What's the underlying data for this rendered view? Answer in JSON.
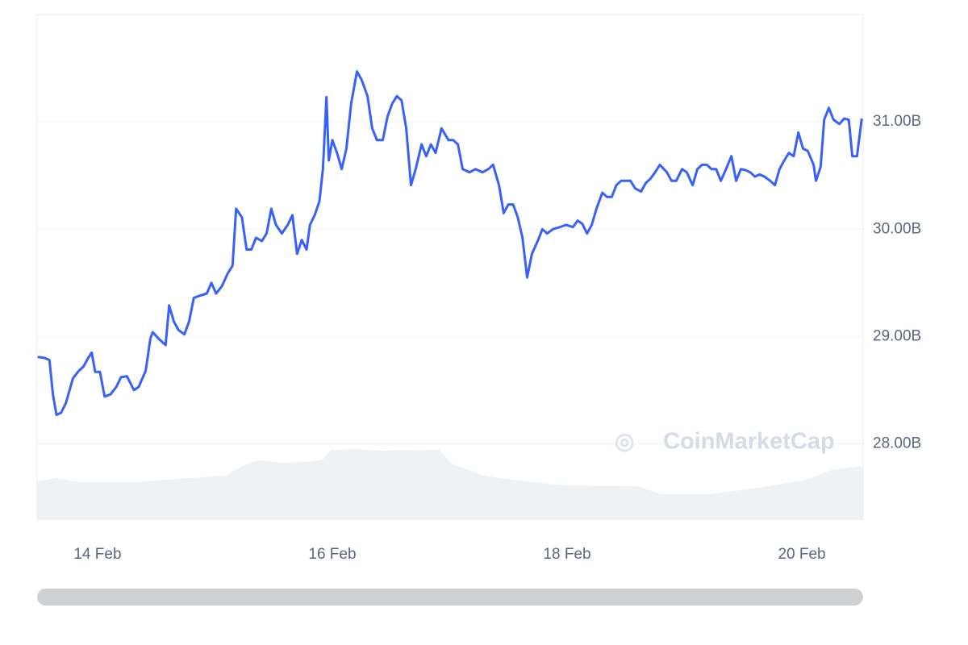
{
  "chart_data": {
    "type": "line",
    "watermark": "CoinMarketCap",
    "color": "#3861fb",
    "grid": true,
    "xlim": [
      13.485,
      20.522
    ],
    "xticks": [
      {
        "value": 14,
        "label": "14 Feb"
      },
      {
        "value": 16,
        "label": "16 Feb"
      },
      {
        "value": 18,
        "label": "18 Feb"
      },
      {
        "value": 20,
        "label": "20 Feb"
      }
    ],
    "ylim": [
      27.29,
      32.0
    ],
    "yticks": [
      {
        "value": 28,
        "label": "28.00B"
      },
      {
        "value": 29,
        "label": "29.00B"
      },
      {
        "value": 30,
        "label": "30.00B"
      },
      {
        "value": 31,
        "label": "31.00B"
      }
    ],
    "x": [
      13.49,
      13.55,
      13.59,
      13.62,
      13.65,
      13.69,
      13.73,
      13.79,
      13.84,
      13.88,
      13.92,
      13.95,
      13.98,
      14.02,
      14.06,
      14.11,
      14.16,
      14.2,
      14.25,
      14.31,
      14.35,
      14.41,
      14.45,
      14.47,
      14.52,
      14.58,
      14.61,
      14.65,
      14.69,
      14.74,
      14.78,
      14.82,
      14.87,
      14.93,
      14.97,
      15.01,
      15.06,
      15.11,
      15.15,
      15.18,
      15.23,
      15.27,
      15.31,
      15.35,
      15.4,
      15.44,
      15.48,
      15.52,
      15.57,
      15.62,
      15.66,
      15.7,
      15.74,
      15.78,
      15.81,
      15.85,
      15.89,
      15.92,
      15.95,
      15.97,
      16.0,
      16.04,
      16.08,
      16.12,
      16.16,
      16.21,
      16.25,
      16.3,
      16.34,
      16.38,
      16.43,
      16.47,
      16.51,
      16.55,
      16.59,
      16.63,
      16.67,
      16.71,
      16.76,
      16.8,
      16.84,
      16.88,
      16.93,
      16.99,
      17.03,
      17.07,
      17.11,
      17.17,
      17.22,
      17.28,
      17.33,
      17.37,
      17.42,
      17.46,
      17.5,
      17.54,
      17.58,
      17.62,
      17.66,
      17.7,
      17.75,
      17.79,
      17.83,
      17.88,
      17.94,
      17.99,
      18.05,
      18.09,
      18.13,
      18.17,
      18.21,
      18.25,
      18.3,
      18.34,
      18.38,
      18.42,
      18.46,
      18.5,
      18.54,
      18.58,
      18.63,
      18.67,
      18.71,
      18.75,
      18.79,
      18.85,
      18.89,
      18.93,
      18.98,
      19.02,
      19.07,
      19.11,
      19.15,
      19.19,
      19.23,
      19.27,
      19.31,
      19.35,
      19.4,
      19.44,
      19.48,
      19.52,
      19.56,
      19.6,
      19.64,
      19.68,
      19.73,
      19.77,
      19.81,
      19.85,
      19.89,
      19.93,
      19.97,
      20.01,
      20.05,
      20.1,
      20.12,
      20.16,
      20.19,
      20.23,
      20.27,
      20.32,
      20.36,
      20.4,
      20.43,
      20.47,
      20.51
    ],
    "values": [
      28.81,
      28.8,
      28.78,
      28.46,
      28.27,
      28.29,
      28.38,
      28.61,
      28.68,
      28.72,
      28.8,
      28.85,
      28.67,
      28.67,
      28.44,
      28.46,
      28.53,
      28.62,
      28.63,
      28.5,
      28.53,
      28.68,
      28.98,
      29.04,
      28.98,
      28.92,
      29.29,
      29.14,
      29.06,
      29.02,
      29.14,
      29.36,
      29.38,
      29.4,
      29.5,
      29.4,
      29.47,
      29.59,
      29.66,
      30.19,
      30.11,
      29.81,
      29.81,
      29.92,
      29.89,
      29.96,
      30.19,
      30.04,
      29.96,
      30.04,
      30.13,
      29.77,
      29.9,
      29.81,
      30.04,
      30.13,
      30.26,
      30.56,
      31.23,
      30.64,
      30.83,
      30.71,
      30.56,
      30.75,
      31.17,
      31.47,
      31.39,
      31.24,
      30.94,
      30.83,
      30.83,
      31.05,
      31.17,
      31.24,
      31.2,
      30.94,
      30.41,
      30.56,
      30.79,
      30.68,
      30.79,
      30.71,
      30.94,
      30.83,
      30.83,
      30.79,
      30.56,
      30.53,
      30.56,
      30.53,
      30.56,
      30.6,
      30.41,
      30.15,
      30.23,
      30.23,
      30.11,
      29.92,
      29.55,
      29.77,
      29.89,
      30.0,
      29.96,
      30.0,
      30.02,
      30.04,
      30.02,
      30.08,
      30.05,
      29.96,
      30.04,
      30.19,
      30.34,
      30.3,
      30.3,
      30.41,
      30.45,
      30.45,
      30.45,
      30.38,
      30.35,
      30.43,
      30.47,
      30.53,
      30.6,
      30.53,
      30.45,
      30.45,
      30.56,
      30.53,
      30.41,
      30.56,
      30.6,
      30.6,
      30.56,
      30.56,
      30.45,
      30.55,
      30.68,
      30.45,
      30.56,
      30.55,
      30.53,
      30.49,
      30.51,
      30.49,
      30.45,
      30.41,
      30.56,
      30.64,
      30.71,
      30.68,
      30.9,
      30.75,
      30.73,
      30.6,
      30.45,
      30.58,
      31.02,
      31.13,
      31.02,
      30.98,
      31.03,
      31.02,
      30.68,
      30.68,
      31.03
    ]
  }
}
